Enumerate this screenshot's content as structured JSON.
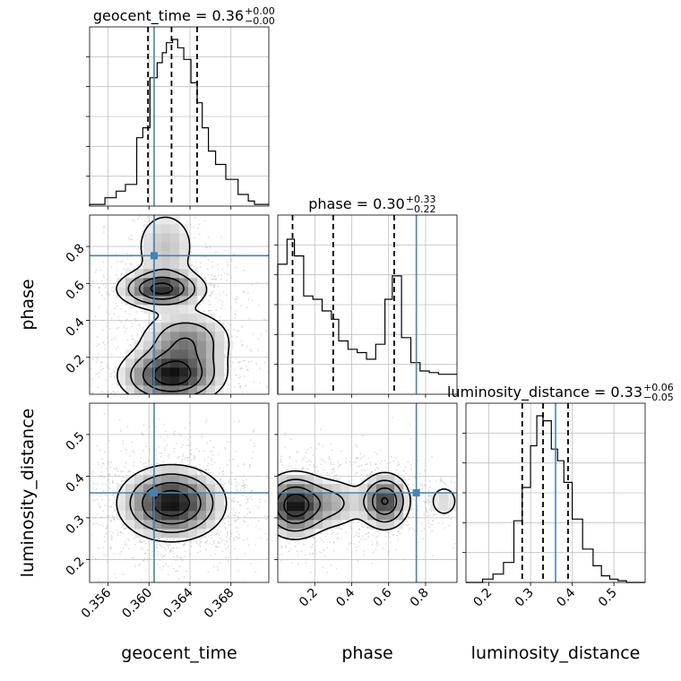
{
  "chart_data": {
    "type": "corner",
    "parameters": [
      "geocent_time",
      "phase",
      "luminosity_distance"
    ],
    "axis_labels": {
      "geocent_time": "geocent_time",
      "phase": "phase",
      "luminosity_distance": "luminosity_distance"
    },
    "titles": {
      "geocent_time": {
        "name": "geocent_time",
        "median": "0.36",
        "plus": "+0.00",
        "minus": "−0.00"
      },
      "phase": {
        "name": "phase",
        "median": "0.30",
        "plus": "+0.33",
        "minus": "−0.22"
      },
      "luminosity_distance": {
        "name": "luminosity_distance",
        "median": "0.33",
        "plus": "+0.06",
        "minus": "−0.05"
      }
    },
    "ranges": {
      "geocent_time": [
        0.3542,
        0.3717
      ],
      "phase": [
        0.0,
        0.97
      ],
      "luminosity_distance": [
        0.145,
        0.575
      ]
    },
    "ticks": {
      "geocent_time": {
        "values": [
          0.356,
          0.36,
          0.364,
          0.368
        ],
        "labels": [
          "0.356",
          "0.360",
          "0.364",
          "0.368"
        ]
      },
      "phase": {
        "values": [
          0.2,
          0.4,
          0.6,
          0.8
        ],
        "labels": [
          "0.2",
          "0.4",
          "0.6",
          "0.8"
        ]
      },
      "luminosity_distance": {
        "values": [
          0.2,
          0.3,
          0.4,
          0.5
        ],
        "labels": [
          "0.2",
          "0.3",
          "0.4",
          "0.5"
        ]
      }
    },
    "truths": {
      "geocent_time": 0.3605,
      "phase": 0.75,
      "luminosity_distance": 0.36
    },
    "quantiles": {
      "geocent_time": [
        0.3599,
        0.3622,
        0.3647
      ],
      "phase": [
        0.08,
        0.3,
        0.63
      ],
      "luminosity_distance": [
        0.28,
        0.33,
        0.39
      ]
    },
    "histograms": {
      "geocent_time": {
        "edges": [
          0.3542,
          0.3557,
          0.3568,
          0.3577,
          0.3588,
          0.3594,
          0.3601,
          0.3608,
          0.3613,
          0.3617,
          0.3623,
          0.3628,
          0.3634,
          0.3641,
          0.3647,
          0.3652,
          0.3658,
          0.3665,
          0.3675,
          0.3687,
          0.3697,
          0.3703,
          0.3717
        ],
        "values": [
          0.01,
          0.05,
          0.09,
          0.13,
          0.41,
          0.47,
          0.77,
          0.86,
          0.92,
          0.98,
          1.0,
          0.95,
          0.88,
          0.74,
          0.62,
          0.47,
          0.33,
          0.25,
          0.16,
          0.07,
          0.03,
          0.01
        ]
      },
      "phase": {
        "edges": [
          0.0,
          0.05,
          0.09,
          0.14,
          0.19,
          0.24,
          0.29,
          0.33,
          0.38,
          0.43,
          0.48,
          0.53,
          0.58,
          0.62,
          0.67,
          0.72,
          0.77,
          0.82,
          0.87,
          0.97
        ],
        "values": [
          0.78,
          0.93,
          0.83,
          0.59,
          0.57,
          0.5,
          0.45,
          0.32,
          0.27,
          0.25,
          0.21,
          0.3,
          0.57,
          0.71,
          0.34,
          0.19,
          0.14,
          0.13,
          0.12
        ]
      },
      "luminosity_distance": {
        "edges": [
          0.145,
          0.185,
          0.21,
          0.235,
          0.26,
          0.28,
          0.3,
          0.315,
          0.33,
          0.35,
          0.365,
          0.38,
          0.4,
          0.425,
          0.45,
          0.47,
          0.49,
          0.51,
          0.53,
          0.575
        ],
        "values": [
          0.0,
          0.02,
          0.05,
          0.12,
          0.37,
          0.57,
          0.82,
          1.0,
          0.97,
          0.8,
          0.73,
          0.6,
          0.38,
          0.2,
          0.1,
          0.04,
          0.02,
          0.01,
          0.0
        ]
      }
    },
    "density_blobs": {
      "phase_vs_geocent_time": [
        {
          "x": 0.3612,
          "y": 0.57,
          "sx": 0.0022,
          "sy": 0.055,
          "w": 0.9
        },
        {
          "x": 0.3622,
          "y": 0.1,
          "sx": 0.0026,
          "sy": 0.08,
          "w": 1.0
        },
        {
          "x": 0.3636,
          "y": 0.29,
          "sx": 0.0024,
          "sy": 0.09,
          "w": 0.55
        },
        {
          "x": 0.3616,
          "y": 0.8,
          "sx": 0.0018,
          "sy": 0.12,
          "w": 0.3
        }
      ],
      "luminosity_distance_vs_geocent_time": [
        {
          "x": 0.3622,
          "y": 0.335,
          "sx": 0.0026,
          "sy": 0.045,
          "w": 1.0
        }
      ],
      "luminosity_distance_vs_phase": [
        {
          "x": 0.09,
          "y": 0.33,
          "sx": 0.09,
          "sy": 0.04,
          "w": 1.0
        },
        {
          "x": 0.58,
          "y": 0.34,
          "sx": 0.07,
          "sy": 0.035,
          "w": 0.85
        },
        {
          "x": 0.3,
          "y": 0.335,
          "sx": 0.1,
          "sy": 0.035,
          "w": 0.35
        },
        {
          "x": 0.9,
          "y": 0.34,
          "sx": 0.06,
          "sy": 0.03,
          "w": 0.2
        }
      ]
    },
    "contour_levels": [
      0.12,
      0.3,
      0.55,
      0.8
    ],
    "colors": {
      "truth": "#4682b4",
      "line": "#000000",
      "grid": "#c0c0c0",
      "scatter": "#9a9a9a"
    },
    "grid": true
  }
}
